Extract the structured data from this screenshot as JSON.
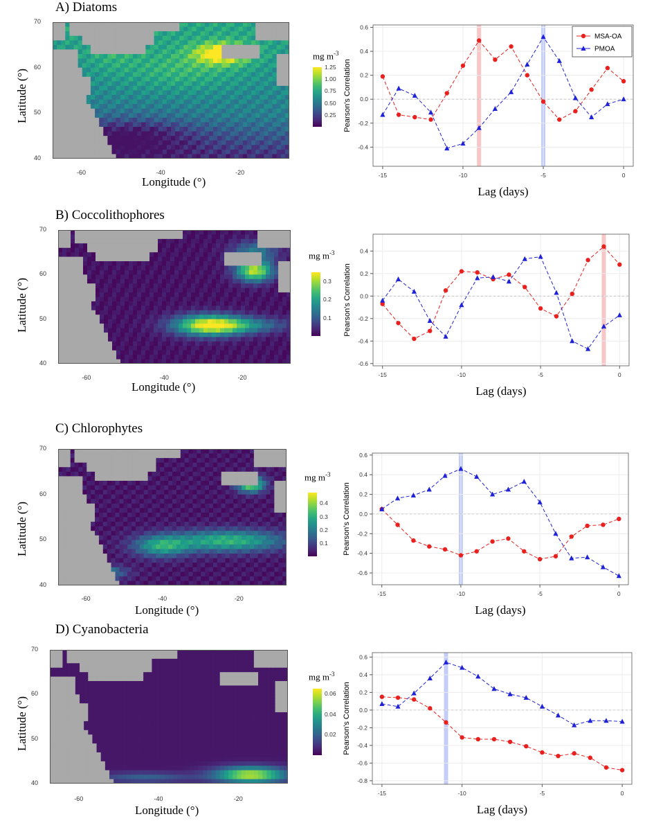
{
  "chart_data": [
    {
      "type": "line",
      "panel_title": "A) Diatoms",
      "map": {
        "xlabel": "Longitude (°)",
        "ylabel": "Latitude (°)",
        "xticks": [
          "-60",
          "-40",
          "-20"
        ],
        "yticks": [
          "70",
          "60",
          "50",
          "40"
        ],
        "colorbar_label": "mg m",
        "colorbar_exp": "-3",
        "colorbar_ticks": [
          "1.25",
          "1.00",
          "0.75",
          "0.50",
          "0.25"
        ],
        "colorbar_max": 1.25
      },
      "xlabel": "Lag (days)",
      "ylabel": "Pearson's Correlation",
      "x": [
        -15,
        -14,
        -13,
        -12,
        -11,
        -10,
        -9,
        -8,
        -7,
        -6,
        -5,
        -4,
        -3,
        -2,
        -1,
        0
      ],
      "xlim": [
        -15.6,
        0.6
      ],
      "ylim": [
        -0.56,
        0.62
      ],
      "yticks": [
        -0.4,
        -0.2,
        0.0,
        0.2,
        0.4,
        0.6
      ],
      "xticks": [
        -15,
        -10,
        -5,
        0
      ],
      "series": [
        {
          "name": "MSA-OA",
          "color": "#e8211f",
          "marker": "circle",
          "values": [
            0.19,
            -0.13,
            -0.15,
            -0.17,
            0.05,
            0.28,
            0.49,
            0.33,
            0.44,
            0.2,
            -0.02,
            -0.17,
            -0.1,
            0.08,
            0.26,
            0.15
          ]
        },
        {
          "name": "PMOA",
          "color": "#1f22d6",
          "marker": "triangle",
          "values": [
            -0.13,
            0.09,
            0.03,
            -0.11,
            -0.41,
            -0.37,
            -0.24,
            -0.08,
            0.06,
            0.29,
            0.52,
            0.32,
            0.01,
            -0.15,
            -0.04,
            0.0
          ]
        }
      ],
      "highlights": [
        {
          "x": -9,
          "color": "#f7c6c6"
        },
        {
          "x": -5,
          "color": "#c4cdf7"
        }
      ],
      "legend": {
        "position": "top-right",
        "entries": [
          "MSA-OA",
          "PMOA"
        ]
      }
    },
    {
      "type": "line",
      "panel_title": "B) Coccolithophores",
      "map": {
        "xlabel": "Longitude (°)",
        "ylabel": "Latitude (°)",
        "xticks": [
          "-60",
          "-40",
          "-20"
        ],
        "yticks": [
          "70",
          "60",
          "50",
          "40"
        ],
        "colorbar_label": "mg m",
        "colorbar_exp": "-3",
        "colorbar_ticks": [
          "0.3",
          "0.2",
          "0.1"
        ],
        "colorbar_max": 0.35
      },
      "xlabel": "Lag (days)",
      "ylabel": "Pearson's Correlation",
      "x": [
        -15,
        -14,
        -13,
        -12,
        -11,
        -10,
        -9,
        -8,
        -7,
        -6,
        -5,
        -4,
        -3,
        -2,
        -1,
        0
      ],
      "xlim": [
        -15.6,
        0.6
      ],
      "ylim": [
        -0.62,
        0.55
      ],
      "yticks": [
        -0.6,
        -0.4,
        -0.2,
        0.0,
        0.2,
        0.4
      ],
      "xticks": [
        -15,
        -10,
        -5,
        0
      ],
      "series": [
        {
          "name": "MSA-OA",
          "color": "#e8211f",
          "marker": "circle",
          "values": [
            -0.07,
            -0.24,
            -0.38,
            -0.31,
            0.05,
            0.22,
            0.21,
            0.15,
            0.19,
            0.08,
            -0.11,
            -0.18,
            0.02,
            0.32,
            0.44,
            0.28
          ]
        },
        {
          "name": "PMOA",
          "color": "#1f22d6",
          "marker": "triangle",
          "values": [
            -0.04,
            0.15,
            0.04,
            -0.22,
            -0.36,
            -0.08,
            0.16,
            0.17,
            0.13,
            0.33,
            0.35,
            0.03,
            -0.4,
            -0.47,
            -0.27,
            -0.17
          ]
        }
      ],
      "highlights": [
        {
          "x": -1,
          "color": "#f7c6c6"
        }
      ]
    },
    {
      "type": "line",
      "panel_title": "C) Chlorophytes",
      "map": {
        "xlabel": "Longitude (°)",
        "ylabel": "Latitude (°)",
        "xticks": [
          "-60",
          "-40",
          "-20"
        ],
        "yticks": [
          "70",
          "60",
          "50",
          "40"
        ],
        "colorbar_label": "mg m",
        "colorbar_exp": "-3",
        "colorbar_ticks": [
          "0.4",
          "0.3",
          "0.2",
          "0.1"
        ],
        "colorbar_max": 0.48
      },
      "xlabel": "Lag (days)",
      "ylabel": "Pearson's Correlation",
      "x": [
        -15,
        -14,
        -13,
        -12,
        -11,
        -10,
        -9,
        -8,
        -7,
        -6,
        -5,
        -4,
        -3,
        -2,
        -1,
        0
      ],
      "xlim": [
        -15.6,
        0.6
      ],
      "ylim": [
        -0.72,
        0.62
      ],
      "yticks": [
        -0.6,
        -0.4,
        -0.2,
        0.0,
        0.2,
        0.4,
        0.6
      ],
      "xticks": [
        -15,
        -10,
        -5,
        0
      ],
      "series": [
        {
          "name": "MSA-OA",
          "color": "#e8211f",
          "marker": "circle",
          "values": [
            0.05,
            -0.11,
            -0.27,
            -0.33,
            -0.36,
            -0.42,
            -0.38,
            -0.28,
            -0.25,
            -0.38,
            -0.46,
            -0.43,
            -0.23,
            -0.12,
            -0.11,
            -0.05
          ]
        },
        {
          "name": "PMOA",
          "color": "#1f22d6",
          "marker": "triangle",
          "values": [
            0.05,
            0.16,
            0.19,
            0.25,
            0.39,
            0.46,
            0.38,
            0.2,
            0.25,
            0.33,
            0.12,
            -0.2,
            -0.45,
            -0.44,
            -0.54,
            -0.63
          ]
        }
      ],
      "highlights": [
        {
          "x": -10,
          "color": "#c4cdf7"
        }
      ]
    },
    {
      "type": "line",
      "panel_title": "D) Cyanobacteria",
      "map": {
        "xlabel": "Longitude (°)",
        "ylabel": "Latitude (°)",
        "xticks": [
          "-60",
          "-40",
          "-20"
        ],
        "yticks": [
          "70",
          "60",
          "50",
          "40"
        ],
        "colorbar_label": "mg m",
        "colorbar_exp": "-3",
        "colorbar_ticks": [
          "0.06",
          "0.04",
          "0.02"
        ],
        "colorbar_max": 0.065
      },
      "xlabel": "Lag (days)",
      "ylabel": "Pearson's Correlation",
      "x": [
        -15,
        -14,
        -13,
        -12,
        -11,
        -10,
        -9,
        -8,
        -7,
        -6,
        -5,
        -4,
        -3,
        -2,
        -1,
        0
      ],
      "xlim": [
        -15.6,
        0.6
      ],
      "ylim": [
        -0.84,
        0.65
      ],
      "yticks": [
        -0.8,
        -0.6,
        -0.4,
        -0.2,
        0.0,
        0.2,
        0.4,
        0.6
      ],
      "xticks": [
        -15,
        -10,
        -5,
        0
      ],
      "series": [
        {
          "name": "MSA-OA",
          "color": "#e8211f",
          "marker": "circle",
          "values": [
            0.15,
            0.14,
            0.12,
            0.02,
            -0.14,
            -0.31,
            -0.33,
            -0.33,
            -0.36,
            -0.41,
            -0.48,
            -0.52,
            -0.49,
            -0.54,
            -0.65,
            -0.68
          ]
        },
        {
          "name": "PMOA",
          "color": "#1f22d6",
          "marker": "triangle",
          "values": [
            0.07,
            0.04,
            0.19,
            0.36,
            0.54,
            0.48,
            0.38,
            0.24,
            0.18,
            0.14,
            0.04,
            -0.06,
            -0.17,
            -0.12,
            -0.12,
            -0.13
          ]
        }
      ],
      "highlights": [
        {
          "x": -11,
          "color": "#c4cdf7"
        }
      ]
    }
  ]
}
